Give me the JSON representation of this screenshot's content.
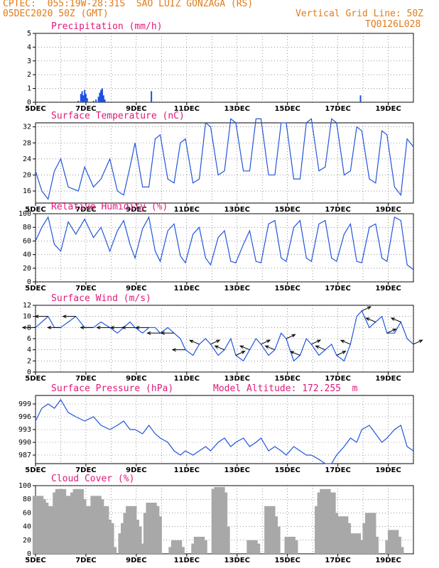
{
  "header": {
    "source": "CPTEC:",
    "location": "055:19W-28:31S  SAO LUIZ GONZAGA (RS)",
    "run": "05DEC2020 50Z (GMT)",
    "grid_note": "Vertical Grid Line: 50Z",
    "code": "TQ0126L028"
  },
  "colors": {
    "header": "#e07b1a",
    "title": "#e0197a",
    "line": "#2255dd",
    "bar_blue": "#1f4fe0",
    "bar_gray": "#a8a8a8",
    "arrow": "#000000"
  },
  "x_axis": {
    "labels": [
      "5DEC",
      "7DEC",
      "9DEC",
      "11DEC",
      "13DEC",
      "15DEC",
      "17DEC",
      "19DEC"
    ]
  },
  "chart_data": [
    {
      "type": "bar",
      "title": "Precipitation (mm/h)",
      "ylim": [
        0,
        5
      ],
      "yticks": [
        "0",
        "1",
        "2",
        "3",
        "4",
        "5"
      ],
      "bars": [
        {
          "x": 0.4,
          "y": 0.03
        },
        {
          "x": 1.7,
          "y": 0.1
        },
        {
          "x": 1.8,
          "y": 0.6
        },
        {
          "x": 1.85,
          "y": 0.8
        },
        {
          "x": 1.9,
          "y": 0.5
        },
        {
          "x": 1.95,
          "y": 0.9
        },
        {
          "x": 2.0,
          "y": 0.6
        },
        {
          "x": 2.05,
          "y": 0.3
        },
        {
          "x": 2.3,
          "y": 0.1
        },
        {
          "x": 2.4,
          "y": 0.2
        },
        {
          "x": 2.5,
          "y": 0.4
        },
        {
          "x": 2.55,
          "y": 0.7
        },
        {
          "x": 2.6,
          "y": 0.9
        },
        {
          "x": 2.65,
          "y": 1.0
        },
        {
          "x": 2.7,
          "y": 0.5
        },
        {
          "x": 2.75,
          "y": 0.2
        },
        {
          "x": 4.6,
          "y": 0.8
        },
        {
          "x": 6.4,
          "y": 0.05
        },
        {
          "x": 12.9,
          "y": 0.5
        }
      ]
    },
    {
      "type": "line",
      "title": "Surface Temperature (nC)",
      "ylim": [
        13,
        33
      ],
      "yticks": [
        "16",
        "20",
        "24",
        "28",
        "32"
      ],
      "x": [
        0,
        0.25,
        0.5,
        0.75,
        1,
        1.3,
        1.7,
        1.95,
        2.3,
        2.6,
        2.95,
        3.25,
        3.5,
        3.75,
        3.95,
        4.25,
        4.5,
        4.75,
        4.95,
        5.25,
        5.5,
        5.75,
        5.95,
        6.25,
        6.5,
        6.75,
        6.95,
        7.25,
        7.5,
        7.75,
        7.95,
        8.25,
        8.5,
        8.75,
        8.95,
        9.25,
        9.5,
        9.75,
        9.95,
        10.25,
        10.5,
        10.75,
        10.95,
        11.25,
        11.5,
        11.75,
        11.95,
        12.25,
        12.5,
        12.75,
        12.95,
        13.25,
        13.5,
        13.75,
        13.95,
        14.25,
        14.5,
        14.75,
        15
      ],
      "values": [
        21,
        16,
        14,
        21,
        24,
        17,
        16,
        22,
        17,
        19,
        24,
        16,
        15,
        22,
        28,
        17,
        17,
        29,
        30,
        19,
        18,
        28,
        29,
        18,
        19,
        33,
        32,
        20,
        21,
        34,
        33,
        21,
        21,
        34,
        34,
        20,
        20,
        33,
        33,
        19,
        19,
        33,
        34,
        21,
        22,
        34,
        33,
        20,
        21,
        32,
        31,
        19,
        18,
        31,
        30,
        17,
        15,
        29,
        27
      ]
    },
    {
      "type": "line",
      "title": "Relative Humidity (%)",
      "ylim": [
        0,
        100
      ],
      "yticks": [
        "0",
        "20",
        "40",
        "60",
        "80",
        "100"
      ],
      "x": [
        0,
        0.25,
        0.5,
        0.75,
        1,
        1.3,
        1.6,
        1.95,
        2.3,
        2.6,
        2.95,
        3.25,
        3.5,
        3.75,
        3.95,
        4.25,
        4.5,
        4.75,
        4.95,
        5.25,
        5.5,
        5.75,
        5.95,
        6.25,
        6.5,
        6.75,
        6.95,
        7.25,
        7.5,
        7.75,
        7.95,
        8.25,
        8.5,
        8.75,
        8.95,
        9.25,
        9.5,
        9.75,
        9.95,
        10.25,
        10.5,
        10.75,
        10.95,
        11.25,
        11.5,
        11.75,
        11.95,
        12.25,
        12.5,
        12.75,
        12.95,
        13.25,
        13.5,
        13.75,
        13.95,
        14.25,
        14.5,
        14.75,
        15
      ],
      "values": [
        60,
        80,
        95,
        55,
        45,
        88,
        70,
        92,
        65,
        80,
        45,
        75,
        90,
        55,
        35,
        78,
        95,
        45,
        30,
        75,
        85,
        38,
        28,
        70,
        80,
        35,
        25,
        65,
        75,
        30,
        28,
        55,
        75,
        30,
        28,
        85,
        90,
        35,
        30,
        80,
        90,
        35,
        30,
        85,
        90,
        35,
        30,
        70,
        85,
        30,
        28,
        80,
        85,
        35,
        30,
        95,
        90,
        25,
        18
      ]
    },
    {
      "type": "line",
      "title": "Surface Wind (m/s)",
      "ylim": [
        0,
        12
      ],
      "yticks": [
        "0",
        "2",
        "4",
        "6",
        "8",
        "10",
        "12"
      ],
      "x": [
        0,
        0.25,
        0.5,
        0.75,
        1,
        1.3,
        1.6,
        1.95,
        2.3,
        2.6,
        2.95,
        3.25,
        3.5,
        3.75,
        3.95,
        4.25,
        4.5,
        4.75,
        4.95,
        5.25,
        5.5,
        5.75,
        5.95,
        6.25,
        6.5,
        6.75,
        6.95,
        7.25,
        7.5,
        7.75,
        7.95,
        8.25,
        8.5,
        8.75,
        8.95,
        9.25,
        9.5,
        9.75,
        9.95,
        10.25,
        10.5,
        10.75,
        10.95,
        11.25,
        11.5,
        11.75,
        11.95,
        12.25,
        12.5,
        12.75,
        12.95,
        13.25,
        13.5,
        13.75,
        13.95,
        14.25,
        14.5,
        14.75,
        15
      ],
      "values": [
        8,
        9,
        10,
        8,
        8,
        9,
        10,
        8,
        8,
        9,
        8,
        7,
        8,
        9,
        8,
        7,
        8,
        8,
        7,
        8,
        7,
        6,
        4,
        3,
        5,
        6,
        5,
        3,
        4,
        6,
        3,
        2,
        4,
        6,
        5,
        3,
        4,
        7,
        6,
        2,
        3,
        6,
        5,
        3,
        4,
        5,
        3,
        2,
        5,
        10,
        11,
        8,
        9,
        10,
        7,
        7,
        9,
        6,
        5
      ]
    },
    {
      "type": "line",
      "title": "Surface Pressure (hPa)",
      "note": "Model Altitude: 172.255  m",
      "ylim": [
        985,
        1001
      ],
      "yticks": [
        "987",
        "990",
        "993",
        "996",
        "999"
      ],
      "x": [
        0,
        0.25,
        0.5,
        0.75,
        1,
        1.3,
        1.6,
        1.95,
        2.3,
        2.6,
        2.95,
        3.25,
        3.5,
        3.75,
        3.95,
        4.25,
        4.5,
        4.75,
        4.95,
        5.25,
        5.5,
        5.75,
        5.95,
        6.25,
        6.5,
        6.75,
        6.95,
        7.25,
        7.5,
        7.75,
        7.95,
        8.25,
        8.5,
        8.75,
        8.95,
        9.25,
        9.5,
        9.75,
        9.95,
        10.25,
        10.5,
        10.75,
        10.95,
        11.25,
        11.5,
        11.75,
        11.95,
        12.25,
        12.5,
        12.75,
        12.95,
        13.25,
        13.5,
        13.75,
        13.95,
        14.25,
        14.5,
        14.75,
        15
      ],
      "values": [
        995,
        998,
        999,
        998,
        1000,
        997,
        996,
        995,
        996,
        994,
        993,
        994,
        995,
        993,
        993,
        992,
        994,
        992,
        991,
        990,
        988,
        987,
        988,
        987,
        988,
        989,
        988,
        990,
        991,
        989,
        990,
        991,
        989,
        990,
        991,
        988,
        989,
        988,
        987,
        989,
        988,
        987,
        987,
        986,
        985,
        985,
        987,
        989,
        991,
        990,
        993,
        994,
        992,
        990,
        991,
        993,
        994,
        989,
        988
      ]
    },
    {
      "type": "bar",
      "title": "Cloud Cover (%)",
      "ylim": [
        0,
        100
      ],
      "yticks": [
        "0",
        "20",
        "40",
        "60",
        "80",
        "100"
      ],
      "x": [
        0.1,
        0.2,
        0.3,
        0.4,
        0.5,
        0.6,
        0.7,
        0.8,
        0.9,
        1.0,
        1.1,
        1.2,
        1.3,
        1.4,
        1.5,
        1.6,
        1.7,
        1.8,
        1.9,
        2.0,
        2.1,
        2.2,
        2.3,
        2.4,
        2.5,
        2.6,
        2.7,
        2.8,
        2.9,
        3.0,
        3.5,
        3.6,
        3.7,
        3.8,
        3.9,
        4.0,
        4.1,
        4.5,
        4.6,
        4.7,
        4.8,
        5.5,
        5.6,
        5.7,
        6.4,
        6.5,
        6.6,
        7.2,
        7.3,
        7.4,
        7.5,
        8.6,
        8.7,
        9.3,
        9.4,
        9.5,
        10.1,
        10.2,
        11.3,
        11.4,
        11.5,
        11.6,
        11.7,
        11.8,
        12.1,
        12.2,
        12.3,
        12.6,
        12.7,
        12.8,
        13.2,
        13.3,
        13.4,
        14.1,
        14.2,
        14.3,
        14.4
      ],
      "values": [
        85,
        80,
        75,
        60,
        65,
        70,
        50,
        55,
        90,
        95,
        85,
        80,
        75,
        70,
        85,
        90,
        95,
        80,
        70,
        60,
        65,
        55,
        70,
        85,
        80,
        60,
        70,
        50,
        45,
        10,
        30,
        45,
        60,
        70,
        50,
        40,
        15,
        60,
        75,
        70,
        55,
        10,
        20,
        10,
        15,
        25,
        20,
        95,
        98,
        90,
        40,
        20,
        15,
        70,
        55,
        40,
        25,
        20,
        70,
        90,
        95,
        85,
        90,
        60,
        30,
        55,
        45,
        15,
        30,
        20,
        45,
        60,
        25,
        20,
        35,
        25,
        10
      ]
    }
  ]
}
